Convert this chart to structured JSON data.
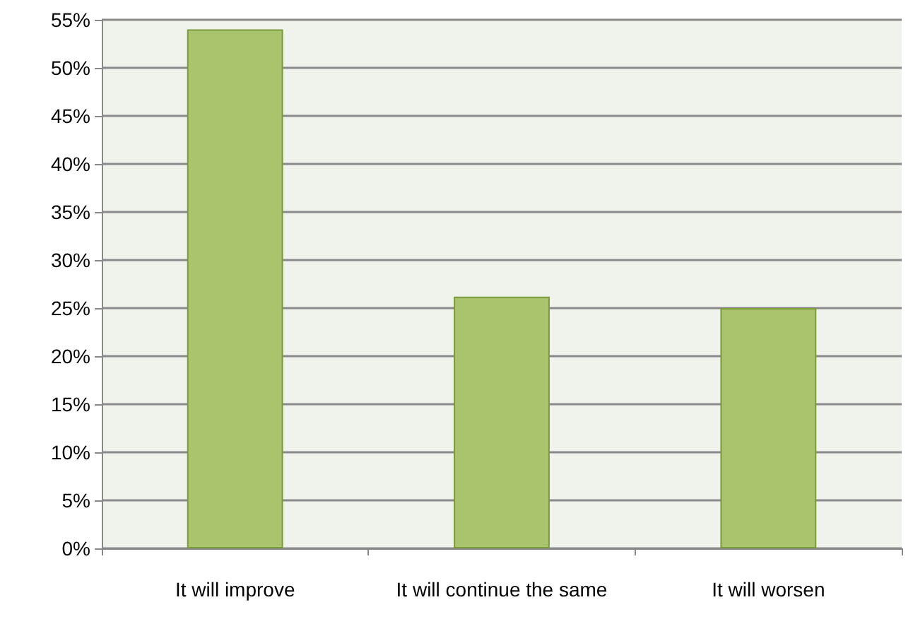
{
  "chart_data": {
    "type": "bar",
    "categories": [
      "It will improve",
      "It will continue the same",
      "It will worsen"
    ],
    "values": [
      54,
      26.2,
      25
    ],
    "color": "#a9c46c",
    "ylim": [
      0,
      55
    ],
    "yticks": [
      {
        "value": 0,
        "label": "0%"
      },
      {
        "value": 5,
        "label": "5%"
      },
      {
        "value": 10,
        "label": "10%"
      },
      {
        "value": 15,
        "label": "15%"
      },
      {
        "value": 20,
        "label": "20%"
      },
      {
        "value": 25,
        "label": "25%"
      },
      {
        "value": 30,
        "label": "30%"
      },
      {
        "value": 35,
        "label": "35%"
      },
      {
        "value": 40,
        "label": "40%"
      },
      {
        "value": 45,
        "label": "45%"
      },
      {
        "value": 50,
        "label": "50%"
      },
      {
        "value": 55,
        "label": "55%"
      }
    ],
    "grid": "y"
  }
}
